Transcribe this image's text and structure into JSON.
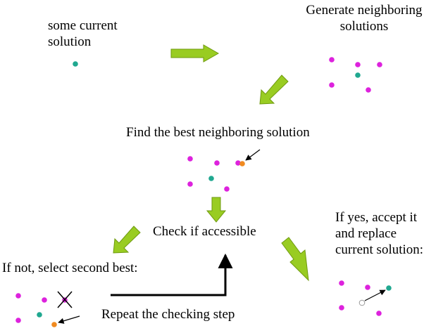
{
  "labels": {
    "current_line1": "some current",
    "current_line2": "solution",
    "generate_line1": "Generate neighboring",
    "generate_line2": "solutions",
    "find_best": "Find the best neighboring solution",
    "check": "Check if accessible",
    "if_not": "If not, select second best:",
    "if_yes_line1": "If yes, accept it",
    "if_yes_line2": "and replace",
    "if_yes_line3": "current solution:",
    "repeat": "Repeat the checking step"
  },
  "colors": {
    "neighbor_dot": "#dd22dd",
    "current_dot": "#20a890",
    "best_dot": "#f08a20",
    "arrow_fill": "#99cc22",
    "arrow_stroke": "#6f9a10"
  }
}
